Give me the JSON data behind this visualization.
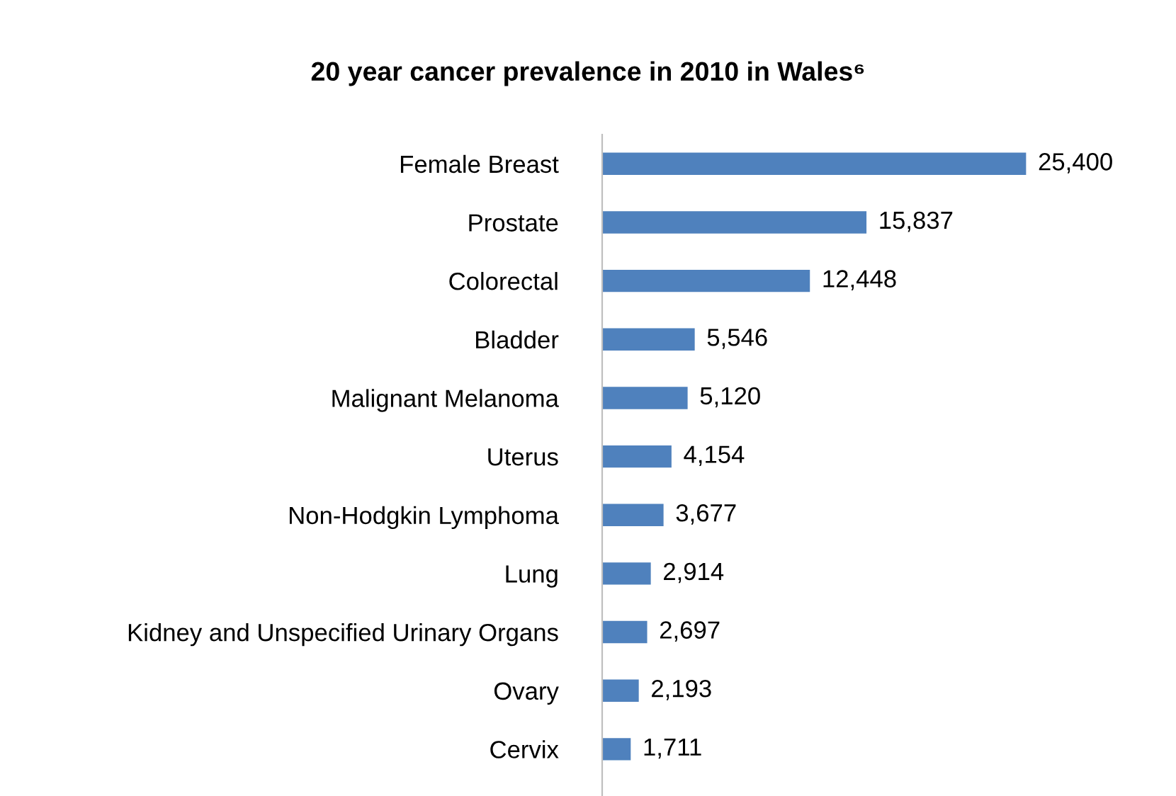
{
  "chart_data": {
    "type": "bar",
    "orientation": "horizontal",
    "title": "20 year cancer prevalence in 2010 in Wales⁶",
    "categories": [
      "Female Breast",
      "Prostate",
      "Colorectal",
      "Bladder",
      "Malignant Melanoma",
      "Uterus",
      "Non-Hodgkin Lymphoma",
      "Lung",
      "Kidney and Unspecified Urinary Organs",
      "Ovary",
      "Cervix"
    ],
    "values": [
      25400,
      15837,
      12448,
      5546,
      5120,
      4154,
      3677,
      2914,
      2697,
      2193,
      1711
    ],
    "value_labels": [
      "25,400",
      "15,837",
      "12,448",
      "5,546",
      "5,120",
      "4,154",
      "3,677",
      "2,914",
      "2,697",
      "2,193",
      "1,711"
    ],
    "color": "#4f81bd",
    "grid": false,
    "legend": false
  }
}
